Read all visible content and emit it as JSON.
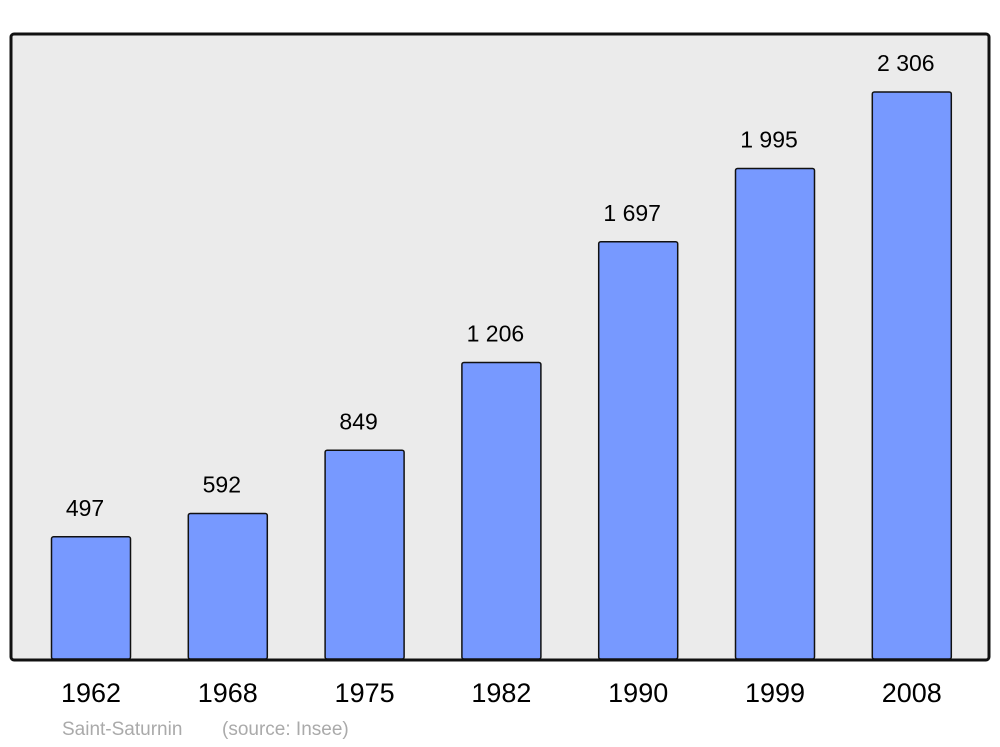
{
  "chart_data": {
    "type": "bar",
    "categories": [
      "1962",
      "1968",
      "1975",
      "1982",
      "1990",
      "1999",
      "2008"
    ],
    "values": [
      497,
      592,
      849,
      1206,
      1697,
      1995,
      2306
    ],
    "value_labels": [
      "497",
      "592",
      "849",
      "1 206",
      "1 697",
      "1 995",
      "2 306"
    ],
    "color": "#7799ff",
    "caption": "Saint-Saturnin",
    "source": "(source: Insee)"
  }
}
